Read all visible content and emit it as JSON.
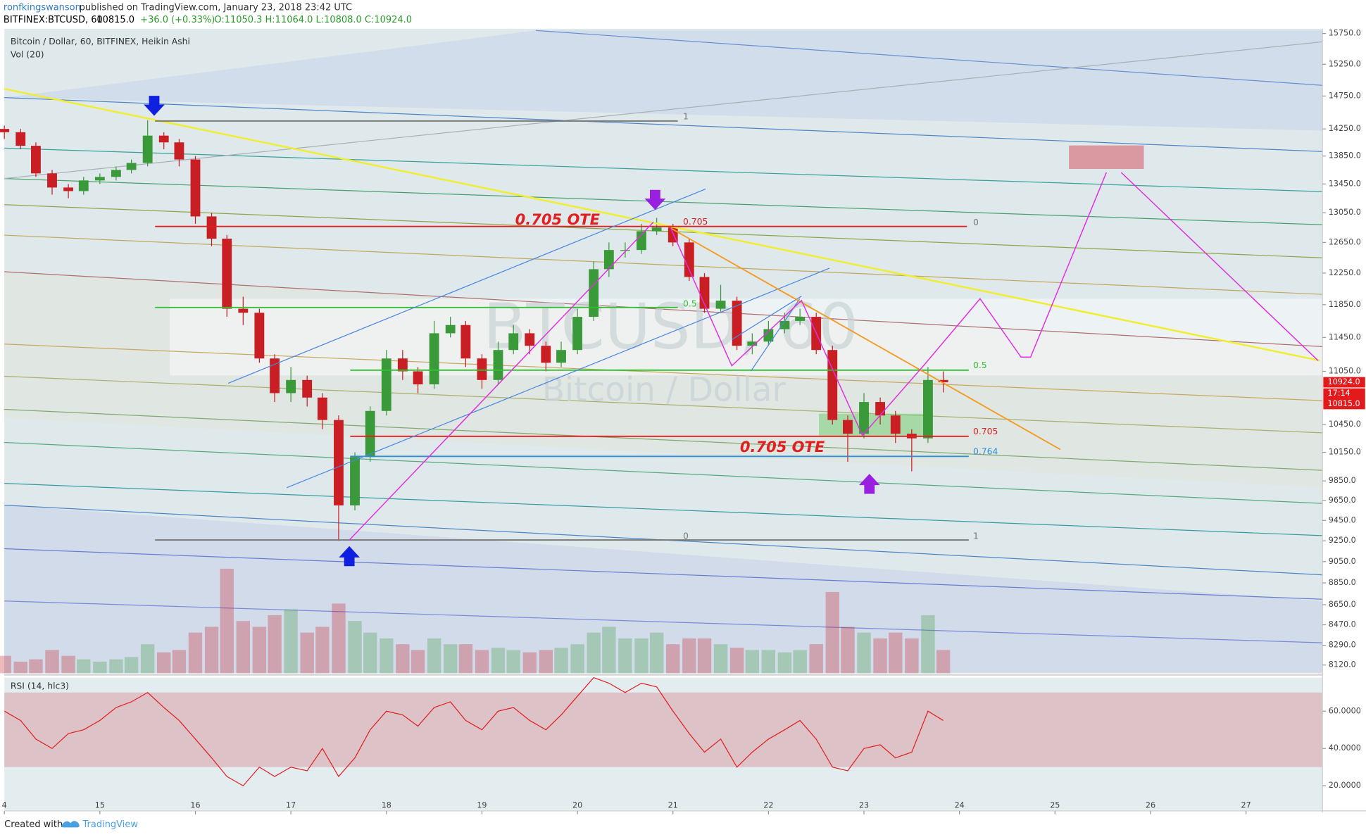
{
  "header": {
    "author": "ronfkingswanson",
    "published": "published on TradingView.com, January 23, 2018 23:42 UTC",
    "symbol": "BITFINEX:BTCUSD, 60",
    "last": "10815.0",
    "change": "+36.0 (+0.33%)",
    "ohlc": "O:11050.3 H:11064.0 L:10808.0 C:10924.0"
  },
  "footer": {
    "created": "Created with",
    "brand": "TradingView"
  },
  "chart_data": {
    "type": "candlestick",
    "title": "Bitcoin / Dollar, 60, BITFINEX, Heikin Ashi",
    "watermark": [
      "BTCUSD, 60",
      "Bitcoin / Dollar"
    ],
    "up_color": "#3a9a3a",
    "down_color": "#c81e24",
    "log_scale": true,
    "xlim": [
      14,
      27.8
    ],
    "xticks": [
      {
        "value": 14,
        "label": "4"
      },
      15,
      16,
      17,
      18,
      19,
      20,
      21,
      22,
      23,
      24,
      25,
      26,
      27
    ],
    "ylim": [
      8050,
      15800
    ],
    "yticks": [
      {
        "value": 15750,
        "label": "15750.0"
      },
      {
        "value": 15250,
        "label": "15250.0"
      },
      {
        "value": 14750,
        "label": "14750.0"
      },
      {
        "value": 14250,
        "label": "14250.0"
      },
      {
        "value": 13850,
        "label": "13850.0"
      },
      {
        "value": 13450,
        "label": "13450.0"
      },
      {
        "value": 13050,
        "label": "13050.0"
      },
      {
        "value": 12650,
        "label": "12650.0"
      },
      {
        "value": 12250,
        "label": "12250.0"
      },
      {
        "value": 11850,
        "label": "11850.0"
      },
      {
        "value": 11450,
        "label": "11450.0"
      },
      {
        "value": 11050,
        "label": "11050.0"
      },
      {
        "value": 10450,
        "label": "10450.0"
      },
      {
        "value": 10150,
        "label": "10150.0"
      },
      {
        "value": 9850,
        "label": "9850.0"
      },
      {
        "value": 9650,
        "label": "9650.0"
      },
      {
        "value": 9450,
        "label": "9450.0"
      },
      {
        "value": 9250,
        "label": "9250.0"
      },
      {
        "value": 9050,
        "label": "9050.0"
      },
      {
        "value": 8850,
        "label": "8850.0"
      },
      {
        "value": 8650,
        "label": "8650.0"
      },
      {
        "value": 8470,
        "label": "8470.0"
      },
      {
        "value": 8290,
        "label": "8290.0"
      },
      {
        "value": 8120,
        "label": "8120.0"
      }
    ],
    "x": [
      14.0,
      14.17,
      14.33,
      14.5,
      14.67,
      14.83,
      15.0,
      15.17,
      15.33,
      15.5,
      15.67,
      15.83,
      16.0,
      16.17,
      16.33,
      16.5,
      16.67,
      16.83,
      17.0,
      17.17,
      17.33,
      17.5,
      17.67,
      17.83,
      18.0,
      18.17,
      18.33,
      18.5,
      18.67,
      18.83,
      19.0,
      19.17,
      19.33,
      19.5,
      19.67,
      19.83,
      20.0,
      20.17,
      20.33,
      20.5,
      20.67,
      20.83,
      21.0,
      21.17,
      21.33,
      21.5,
      21.67,
      21.83,
      22.0,
      22.17,
      22.33,
      22.5,
      22.67,
      22.83,
      23.0,
      23.17,
      23.33,
      23.5,
      23.67,
      23.83
    ],
    "open": [
      14250,
      14200,
      14000,
      13600,
      13400,
      13350,
      13500,
      13550,
      13650,
      13750,
      14150,
      14050,
      13800,
      13000,
      12700,
      11800,
      11750,
      11200,
      10800,
      10950,
      10750,
      10500,
      9600,
      10100,
      10600,
      11200,
      11050,
      10900,
      11500,
      11600,
      11200,
      10950,
      11300,
      11500,
      11350,
      11150,
      11300,
      11700,
      12300,
      12550,
      12550,
      12800,
      12850,
      12650,
      12200,
      11800,
      11900,
      11350,
      11400,
      11550,
      11650,
      11700,
      11300,
      10500,
      10350,
      10700,
      10550,
      10350,
      10300,
      10950
    ],
    "high": [
      14300,
      14250,
      14050,
      13650,
      13450,
      13550,
      13600,
      13700,
      13800,
      14380,
      14200,
      14100,
      13850,
      13050,
      12750,
      11950,
      11800,
      11250,
      11100,
      11000,
      10800,
      10550,
      10150,
      10650,
      11300,
      11300,
      11100,
      11650,
      11700,
      11650,
      11250,
      11400,
      11600,
      11550,
      11400,
      11400,
      11800,
      12400,
      12650,
      12650,
      12900,
      12980,
      12900,
      12700,
      12250,
      12100,
      11950,
      11500,
      11650,
      11750,
      11800,
      11750,
      11350,
      10550,
      10800,
      10750,
      10600,
      10400,
      11100,
      11050
    ],
    "low": [
      14100,
      13950,
      13550,
      13300,
      13250,
      13300,
      13450,
      13500,
      13600,
      13700,
      13950,
      13700,
      12900,
      12600,
      11700,
      11600,
      11150,
      10700,
      10700,
      10650,
      10400,
      9250,
      9550,
      10050,
      10550,
      10950,
      10800,
      10850,
      11450,
      11100,
      10850,
      10900,
      11250,
      11250,
      11050,
      11100,
      11250,
      11650,
      12200,
      12450,
      12500,
      12750,
      12600,
      12150,
      11750,
      11750,
      11300,
      11250,
      11350,
      11500,
      11600,
      11250,
      10450,
      10050,
      10300,
      10450,
      10250,
      9950,
      10250,
      10808
    ],
    "close": [
      14200,
      14000,
      13600,
      13400,
      13350,
      13500,
      13550,
      13650,
      13750,
      14150,
      14050,
      13800,
      13000,
      12700,
      11800,
      11750,
      11200,
      10800,
      10950,
      10750,
      10500,
      9600,
      10100,
      10600,
      11200,
      11050,
      10900,
      11500,
      11600,
      11200,
      10950,
      11300,
      11500,
      11350,
      11150,
      11300,
      11700,
      12300,
      12550,
      12550,
      12800,
      12850,
      12650,
      12200,
      11800,
      11900,
      11350,
      11400,
      11550,
      11650,
      11700,
      11300,
      10500,
      10350,
      10700,
      10550,
      10350,
      10300,
      10950,
      10924
    ],
    "volume": {
      "name": "Vol (20)",
      "values": [
        15,
        10,
        12,
        20,
        15,
        12,
        10,
        12,
        14,
        25,
        18,
        20,
        35,
        40,
        90,
        45,
        40,
        50,
        55,
        35,
        40,
        60,
        45,
        35,
        30,
        25,
        20,
        30,
        25,
        25,
        20,
        22,
        20,
        18,
        20,
        22,
        25,
        35,
        40,
        30,
        30,
        35,
        25,
        30,
        30,
        25,
        22,
        20,
        20,
        18,
        20,
        25,
        70,
        40,
        35,
        30,
        35,
        30,
        50,
        20
      ]
    },
    "rsi": {
      "name": "RSI (14, hlc3)",
      "color": "#e02020",
      "band": [
        30,
        70
      ],
      "ylim": [
        7,
        78
      ],
      "yticks": [
        {
          "value": 20,
          "label": "20.0000"
        },
        {
          "value": 40,
          "label": "40.0000"
        },
        {
          "value": 60,
          "label": "60.0000"
        }
      ],
      "values": [
        60,
        55,
        45,
        40,
        48,
        50,
        55,
        62,
        65,
        70,
        62,
        55,
        45,
        35,
        25,
        20,
        30,
        25,
        30,
        28,
        40,
        25,
        35,
        50,
        60,
        58,
        52,
        62,
        65,
        55,
        50,
        60,
        62,
        55,
        50,
        58,
        68,
        78,
        75,
        70,
        75,
        73,
        60,
        48,
        38,
        45,
        30,
        38,
        45,
        50,
        55,
        45,
        30,
        28,
        40,
        42,
        35,
        38,
        60,
        55
      ]
    },
    "price_tags": [
      {
        "value": 10924,
        "label": "10924.0"
      },
      {
        "value": 10815,
        "label": "10815.0"
      }
    ],
    "countdown": "17:14",
    "annotations": [
      "0.705 OTE",
      "0.705 OTE",
      "1",
      "0.705",
      "0",
      "0.5",
      "0",
      "1",
      "0.705",
      "0.5",
      "0.764"
    ]
  }
}
